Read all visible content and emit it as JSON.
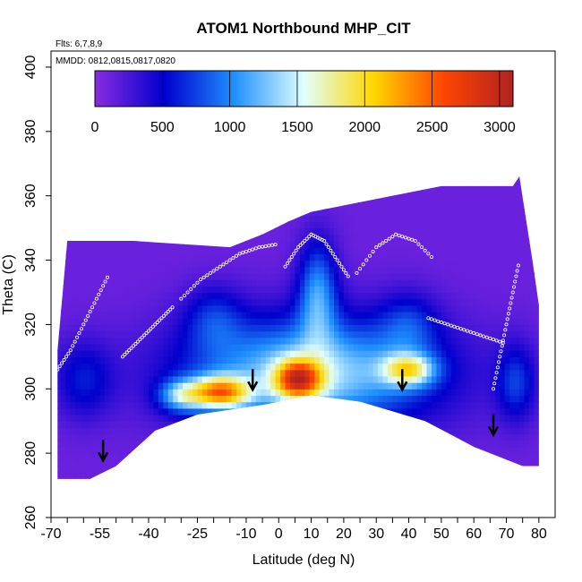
{
  "chart_data": {
    "type": "heatmap",
    "title": "ATOM1 Northbound MHP_CIT",
    "subtitle_flights": "Flts: 6,7,8,9",
    "subtitle_dates": "MMDD: 0812,0815,0817,0820",
    "xlabel": "Latitude (deg N)",
    "ylabel": "Theta (C)",
    "xlim": [
      -70,
      85
    ],
    "ylim": [
      260,
      405
    ],
    "x_ticks": [
      -70,
      -55,
      -40,
      -25,
      -10,
      0,
      10,
      20,
      30,
      40,
      50,
      60,
      70,
      80
    ],
    "y_ticks": [
      260,
      280,
      300,
      320,
      340,
      360,
      380,
      400
    ],
    "colorbar": {
      "min": 0,
      "max": 3100,
      "ticks": [
        0,
        500,
        1000,
        1500,
        2000,
        2500,
        3000
      ],
      "colors": [
        "#8a2be2",
        "#0000cd",
        "#1e90ff",
        "#e0ffff",
        "#ffd700",
        "#ff4500",
        "#b22222"
      ]
    },
    "upper_boundary": [
      {
        "lat": -68,
        "theta": 312
      },
      {
        "lat": -65,
        "theta": 346
      },
      {
        "lat": -45,
        "theta": 346
      },
      {
        "lat": -15,
        "theta": 344
      },
      {
        "lat": -5,
        "theta": 348
      },
      {
        "lat": 3,
        "theta": 352
      },
      {
        "lat": 10,
        "theta": 355
      },
      {
        "lat": 30,
        "theta": 359
      },
      {
        "lat": 50,
        "theta": 363
      },
      {
        "lat": 72,
        "theta": 363
      },
      {
        "lat": 74,
        "theta": 366
      },
      {
        "lat": 78,
        "theta": 340
      },
      {
        "lat": 80,
        "theta": 326
      }
    ],
    "lower_boundary": [
      {
        "lat": -68,
        "theta": 272
      },
      {
        "lat": -58,
        "theta": 272
      },
      {
        "lat": -50,
        "theta": 276
      },
      {
        "lat": -38,
        "theta": 287
      },
      {
        "lat": -25,
        "theta": 292
      },
      {
        "lat": -5,
        "theta": 295
      },
      {
        "lat": 10,
        "theta": 298
      },
      {
        "lat": 25,
        "theta": 296
      },
      {
        "lat": 35,
        "theta": 293
      },
      {
        "lat": 45,
        "theta": 290
      },
      {
        "lat": 60,
        "theta": 282
      },
      {
        "lat": 75,
        "theta": 276
      },
      {
        "lat": 80,
        "theta": 276
      }
    ],
    "blobs": [
      {
        "lat": 10,
        "theta": 305,
        "value": 1300,
        "spread_lat": 38,
        "spread_theta": 17
      },
      {
        "lat": 12,
        "theta": 330,
        "value": 900,
        "spread_lat": 6,
        "spread_theta": 16
      },
      {
        "lat": -18,
        "theta": 299,
        "value": 1750,
        "spread_lat": 9,
        "spread_theta": 5
      },
      {
        "lat": 6,
        "theta": 303,
        "value": 1750,
        "spread_lat": 7,
        "spread_theta": 6
      },
      {
        "lat": 40,
        "theta": 306,
        "value": 1250,
        "spread_lat": 8,
        "spread_theta": 5
      },
      {
        "lat": -30,
        "theta": 298,
        "value": 900,
        "spread_lat": 7,
        "spread_theta": 5
      },
      {
        "lat": -60,
        "theta": 303,
        "value": 450,
        "spread_lat": 9,
        "spread_theta": 12
      },
      {
        "lat": 73,
        "theta": 302,
        "value": 550,
        "spread_lat": 6,
        "spread_theta": 12
      },
      {
        "lat": -20,
        "theta": 322,
        "value": 450,
        "spread_lat": 9,
        "spread_theta": 10
      },
      {
        "lat": 40,
        "theta": 320,
        "value": 450,
        "spread_lat": 9,
        "spread_theta": 10
      }
    ],
    "flight_tracks": [
      {
        "lat": [
          -68,
          -64,
          -60,
          -56,
          -52
        ],
        "theta": [
          306,
          312,
          320,
          328,
          336
        ]
      },
      {
        "lat": [
          -48,
          -44,
          -40,
          -36,
          -32
        ],
        "theta": [
          310,
          314,
          318,
          322,
          326
        ]
      },
      {
        "lat": [
          -30,
          -24,
          -18,
          -12,
          -6,
          0
        ],
        "theta": [
          328,
          334,
          338,
          342,
          344,
          345
        ]
      },
      {
        "lat": [
          2,
          6,
          10,
          14,
          18,
          22
        ],
        "theta": [
          338,
          344,
          348,
          346,
          340,
          334
        ]
      },
      {
        "lat": [
          24,
          30,
          36,
          42,
          48
        ],
        "theta": [
          336,
          344,
          348,
          346,
          340
        ]
      },
      {
        "lat": [
          46,
          52,
          58,
          64,
          70
        ],
        "theta": [
          322,
          320,
          318,
          316,
          314
        ]
      },
      {
        "lat": [
          66,
          68,
          70,
          72,
          74
        ],
        "theta": [
          300,
          310,
          320,
          330,
          340
        ]
      }
    ],
    "arrows": [
      {
        "lat": -54,
        "theta": 278
      },
      {
        "lat": -8,
        "theta": 300
      },
      {
        "lat": 38,
        "theta": 300
      },
      {
        "lat": 66,
        "theta": 286
      }
    ]
  }
}
